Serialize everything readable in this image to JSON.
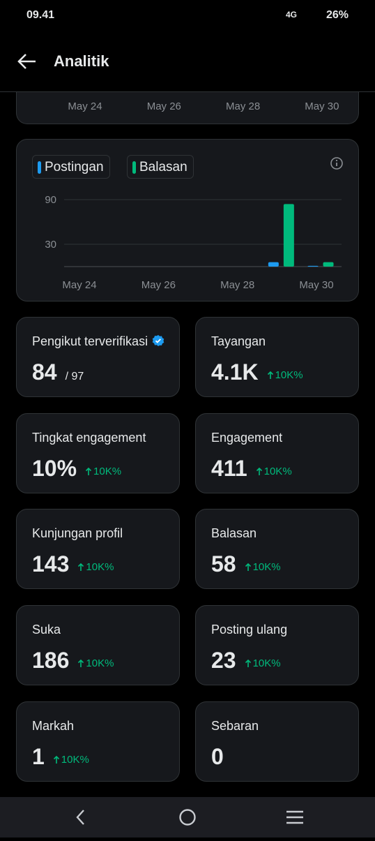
{
  "status_bar": {
    "time": "09.41",
    "network": "4G",
    "battery": "26%"
  },
  "header": {
    "title": "Analitik"
  },
  "top_chart_axis": {
    "labels": [
      "May 24",
      "May 26",
      "May 28",
      "May 30"
    ]
  },
  "chart_data": {
    "type": "bar",
    "categories": [
      "May 24",
      null,
      "May 26",
      null,
      "May 28",
      null,
      "May 30"
    ],
    "series": [
      {
        "name": "Postingan",
        "color": "#1d9bf0",
        "values": [
          0,
          0,
          0,
          0,
          0,
          6,
          1
        ]
      },
      {
        "name": "Balasan",
        "color": "#00ba7c",
        "values": [
          0,
          0,
          0,
          0,
          0,
          84,
          6
        ]
      }
    ],
    "ylim": [
      0,
      90
    ],
    "yticks": [
      30,
      90
    ],
    "grid": true
  },
  "cards": [
    {
      "label": "Pengikut terverifikasi",
      "value": "84",
      "total": "/ 97"
    },
    {
      "label": "Tayangan",
      "value": "4.1K",
      "change": "10K%"
    },
    {
      "label": "Tingkat engagement",
      "value": "10%",
      "change": "10K%"
    },
    {
      "label": "Engagement",
      "value": "411",
      "change": "10K%"
    },
    {
      "label": "Kunjungan profil",
      "value": "143",
      "change": "10K%"
    },
    {
      "label": "Balasan",
      "value": "58",
      "change": "10K%"
    },
    {
      "label": "Suka",
      "value": "186",
      "change": "10K%"
    },
    {
      "label": "Posting ulang",
      "value": "23",
      "change": "10K%"
    },
    {
      "label": "Markah",
      "value": "1",
      "change": "10K%"
    },
    {
      "label": "Sebaran",
      "value": "0"
    }
  ]
}
